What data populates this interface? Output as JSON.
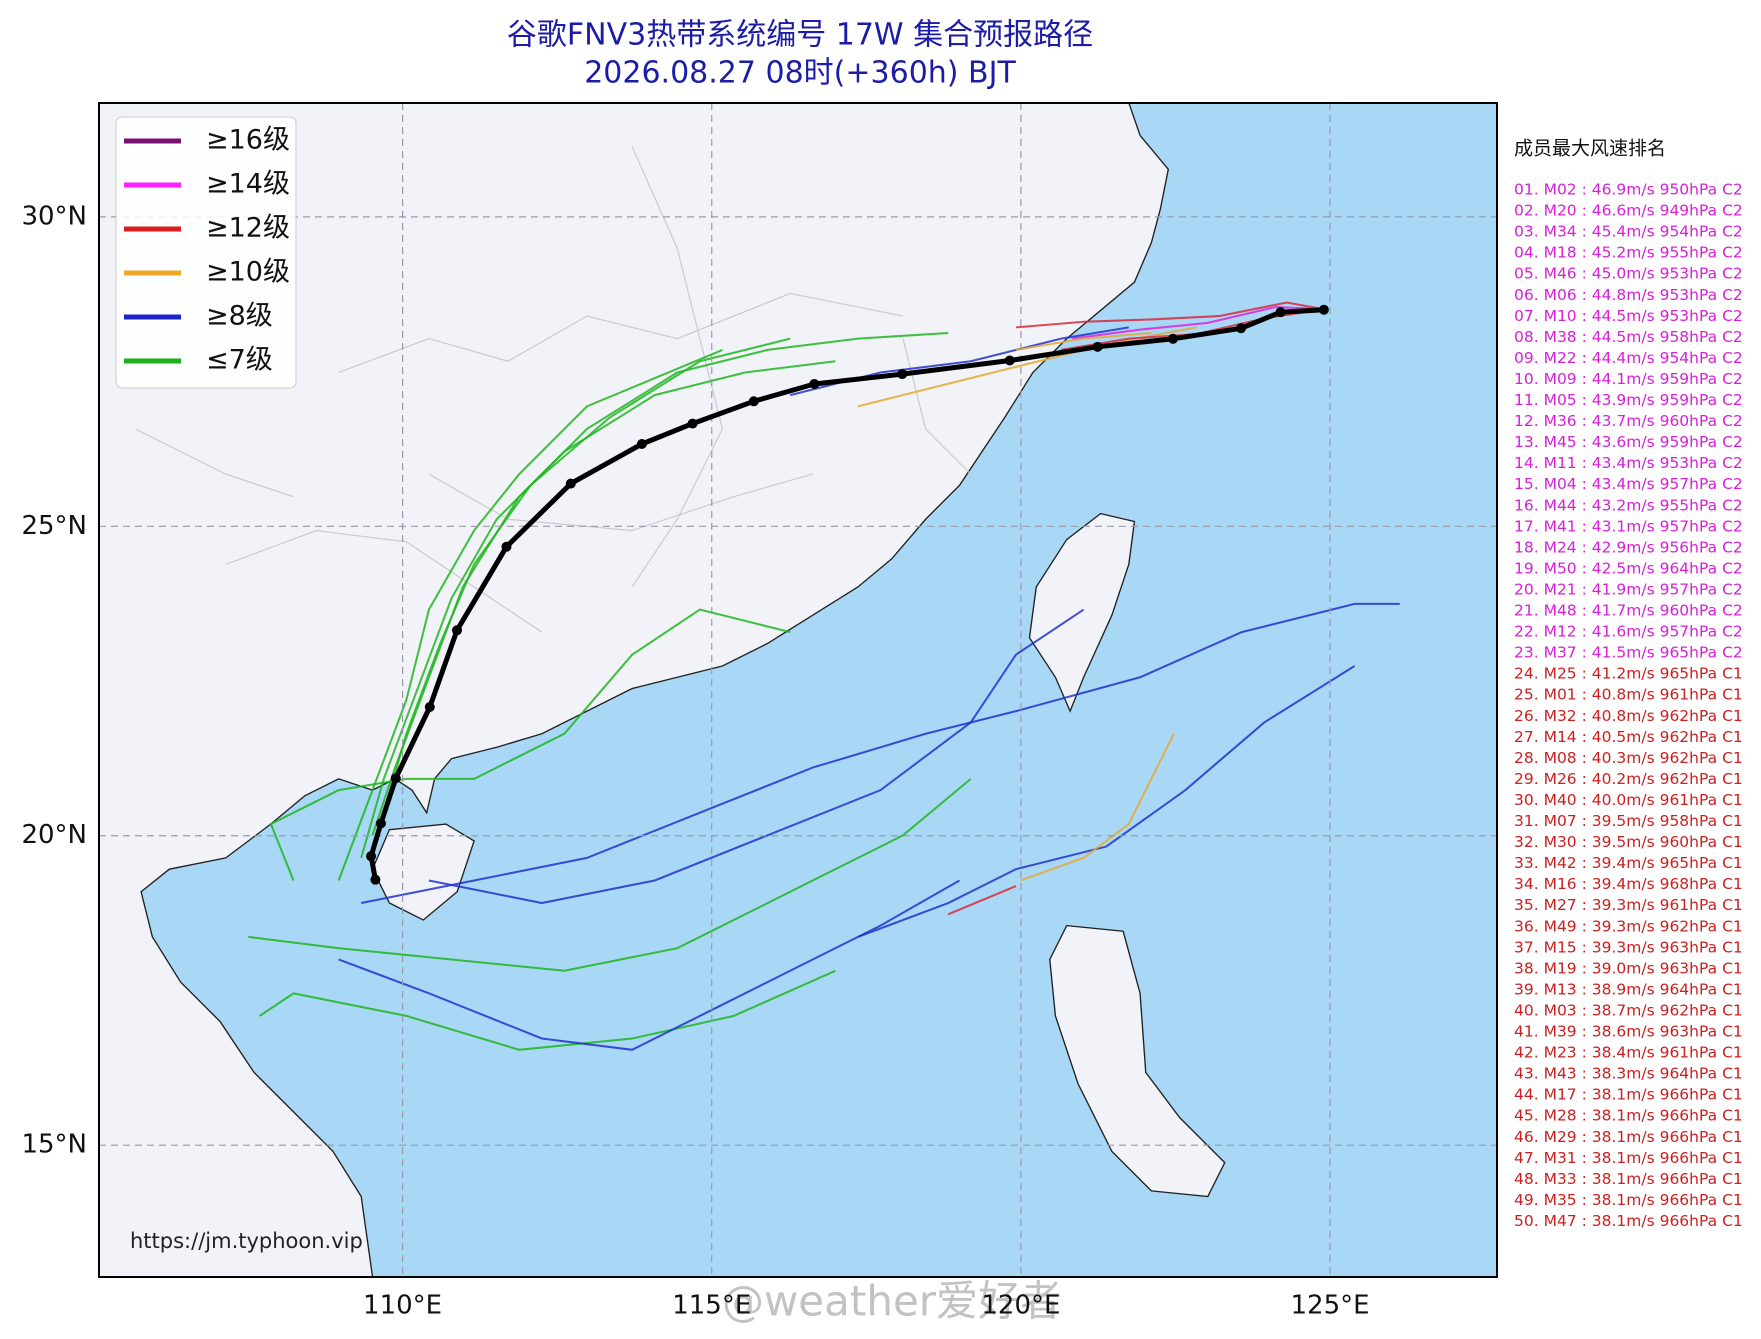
{
  "map": {
    "title": "谷歌FNV3热带系统编号 17W 集合预报路径",
    "subtitle": "2026.08.27 08时(+360h) BJT",
    "xlim": [
      105.09,
      127.7
    ],
    "ylim": [
      12.87,
      31.84
    ],
    "xticks": [
      {
        "value": 110,
        "label": "110°E"
      },
      {
        "value": 115,
        "label": "115°E"
      },
      {
        "value": 120,
        "label": "120°E"
      },
      {
        "value": 125,
        "label": "125°E"
      }
    ],
    "yticks": [
      {
        "value": 15,
        "label": "15°N"
      },
      {
        "value": 20,
        "label": "20°N"
      },
      {
        "value": 25,
        "label": "25°N"
      },
      {
        "value": 30,
        "label": "30°N"
      }
    ],
    "grid": true,
    "mean_track": {
      "color": "#000000",
      "lon": [
        124.9,
        124.2,
        123.56,
        122.46,
        121.24,
        119.82,
        118.08,
        116.66,
        115.68,
        114.69,
        113.87,
        112.72,
        111.68,
        110.88,
        110.44,
        109.89,
        109.65,
        109.49,
        109.56
      ],
      "lat": [
        28.5,
        28.46,
        28.2,
        28.03,
        27.9,
        27.68,
        27.46,
        27.3,
        27.02,
        26.66,
        26.33,
        25.69,
        24.67,
        23.32,
        22.08,
        20.93,
        20.2,
        19.67,
        19.29
      ]
    },
    "source_url": "https://jm.typhoon.vip"
  },
  "legend": {
    "items": [
      {
        "label": "≥16级",
        "color": "#7a1070"
      },
      {
        "label": "≥14级",
        "color": "#ff20ff"
      },
      {
        "label": "≥12级",
        "color": "#dd1c1c"
      },
      {
        "label": "≥10级",
        "color": "#f0a828"
      },
      {
        "label": "≥8级",
        "color": "#1c22cc"
      },
      {
        "label": "≤7级",
        "color": "#1cb01c"
      }
    ]
  },
  "ranking": {
    "title": "成员最大风速排名",
    "groups": [
      {
        "color": "#d820d8",
        "items": [
          "01. M02 : 46.9m/s 950hPa C2",
          "02. M20 : 46.6m/s 949hPa C2",
          "03. M34 : 45.4m/s 954hPa C2",
          "04. M18 : 45.2m/s 955hPa C2",
          "05. M46 : 45.0m/s 953hPa C2",
          "06. M06 : 44.8m/s 953hPa C2",
          "07. M10 : 44.5m/s 953hPa C2",
          "08. M38 : 44.5m/s 958hPa C2",
          "09. M22 : 44.4m/s 954hPa C2",
          "10. M09 : 44.1m/s 959hPa C2",
          "11. M05 : 43.9m/s 959hPa C2",
          "12. M36 : 43.7m/s 960hPa C2",
          "13. M45 : 43.6m/s 959hPa C2",
          "14. M11 : 43.4m/s 953hPa C2",
          "15. M04 : 43.4m/s 957hPa C2",
          "16. M44 : 43.2m/s 955hPa C2",
          "17. M41 : 43.1m/s 957hPa C2",
          "18. M24 : 42.9m/s 956hPa C2",
          "19. M50 : 42.5m/s 964hPa C2",
          "20. M21 : 41.9m/s 957hPa C2",
          "21. M48 : 41.7m/s 960hPa C2",
          "22. M12 : 41.6m/s 957hPa C2",
          "23. M37 : 41.5m/s 965hPa C2"
        ]
      },
      {
        "color": "#cc2020",
        "items": [
          "24. M25 : 41.2m/s 965hPa C1",
          "25. M01 : 40.8m/s 961hPa C1",
          "26. M32 : 40.8m/s 962hPa C1",
          "27. M14 : 40.5m/s 962hPa C1",
          "28. M08 : 40.3m/s 962hPa C1",
          "29. M26 : 40.2m/s 962hPa C1",
          "30. M40 : 40.0m/s 961hPa C1",
          "31. M07 : 39.5m/s 958hPa C1",
          "32. M30 : 39.5m/s 960hPa C1",
          "33. M42 : 39.4m/s 965hPa C1",
          "34. M16 : 39.4m/s 968hPa C1",
          "35. M27 : 39.3m/s 961hPa C1",
          "36. M49 : 39.3m/s 962hPa C1",
          "37. M15 : 39.3m/s 963hPa C1",
          "38. M19 : 39.0m/s 963hPa C1",
          "39. M13 : 38.9m/s 964hPa C1",
          "40. M03 : 38.7m/s 962hPa C1",
          "41. M39 : 38.6m/s 963hPa C1",
          "42. M23 : 38.4m/s 961hPa C1",
          "43. M43 : 38.3m/s 964hPa C1",
          "44. M17 : 38.1m/s 966hPa C1",
          "45. M28 : 38.1m/s 966hPa C1",
          "46. M29 : 38.1m/s 966hPa C1",
          "47. M31 : 38.1m/s 966hPa C1",
          "48. M33 : 38.1m/s 966hPa C1",
          "49. M35 : 38.1m/s 966hPa C1",
          "50. M47 : 38.1m/s 966hPa C1"
        ]
      }
    ]
  },
  "watermark": "@weather爱好者"
}
